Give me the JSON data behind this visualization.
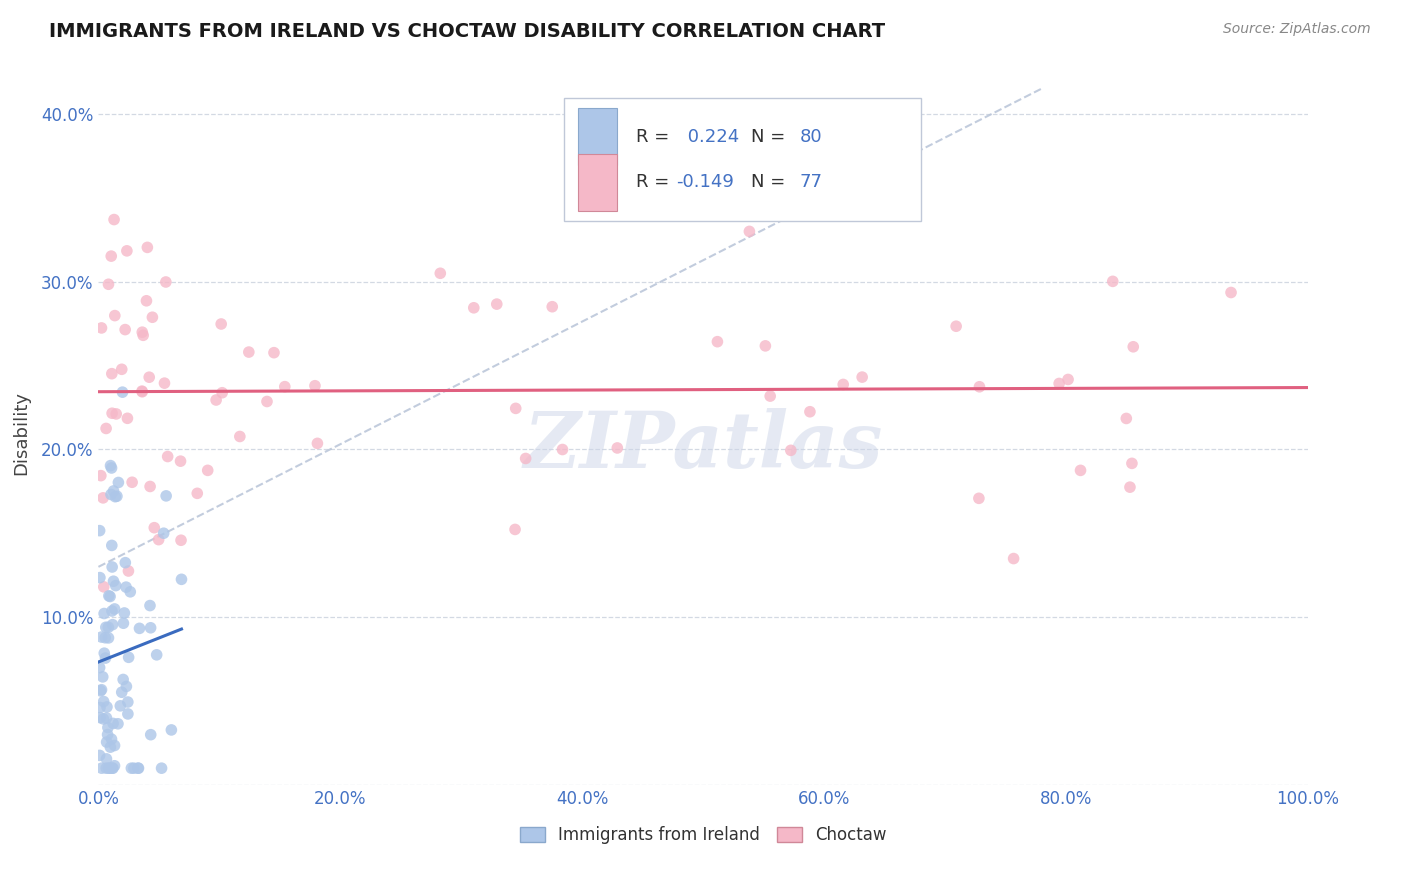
{
  "title": "IMMIGRANTS FROM IRELAND VS CHOCTAW DISABILITY CORRELATION CHART",
  "source_text": "Source: ZipAtlas.com",
  "ylabel": "Disability",
  "r_ireland": 0.224,
  "n_ireland": 80,
  "r_choctaw": -0.149,
  "n_choctaw": 77,
  "color_ireland": "#adc6e8",
  "color_choctaw": "#f5b8c8",
  "line_color_ireland": "#3a6bbf",
  "line_color_choctaw": "#e06080",
  "trend_line_color": "#b8c4d8",
  "background_color": "#ffffff",
  "watermark": "ZIPatlas",
  "legend_labels": [
    "Immigrants from Ireland",
    "Choctaw"
  ]
}
